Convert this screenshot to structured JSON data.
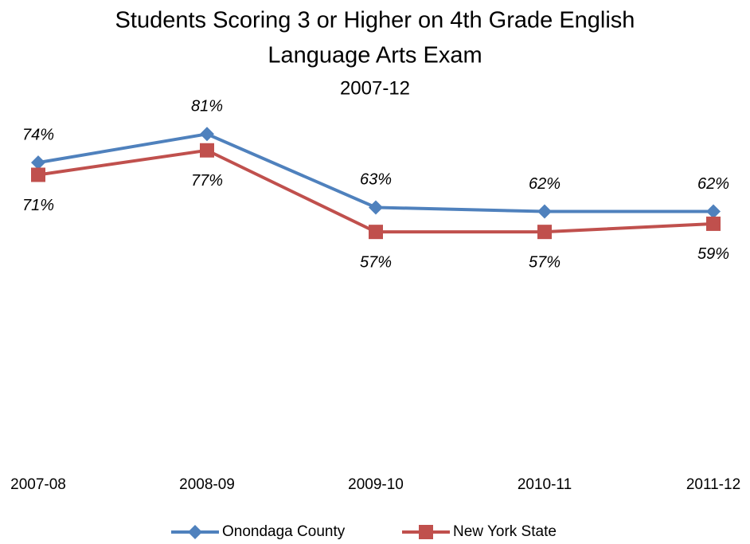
{
  "chart_data": {
    "type": "line",
    "title": "Students Scoring 3 or Higher on 4th Grade English",
    "title_line2": "Language Arts Exam",
    "subtitle": "2007-12",
    "categories": [
      "2007-08",
      "2008-09",
      "2009-10",
      "2010-11",
      "2011-12"
    ],
    "series": [
      {
        "name": "Onondaga County",
        "color": "#4f81bd",
        "marker": "diamond",
        "label_position": "above",
        "values": [
          74,
          81,
          63,
          62,
          62
        ],
        "value_labels": [
          "74%",
          "81%",
          "63%",
          "62%",
          "62%"
        ]
      },
      {
        "name": "New York State",
        "color": "#c0504d",
        "marker": "square",
        "label_position": "below",
        "values": [
          71,
          77,
          57,
          57,
          59
        ],
        "value_labels": [
          "71%",
          "77%",
          "57%",
          "57%",
          "59%"
        ]
      }
    ],
    "ylim": [
      0,
      100
    ],
    "legend": "bottom"
  }
}
